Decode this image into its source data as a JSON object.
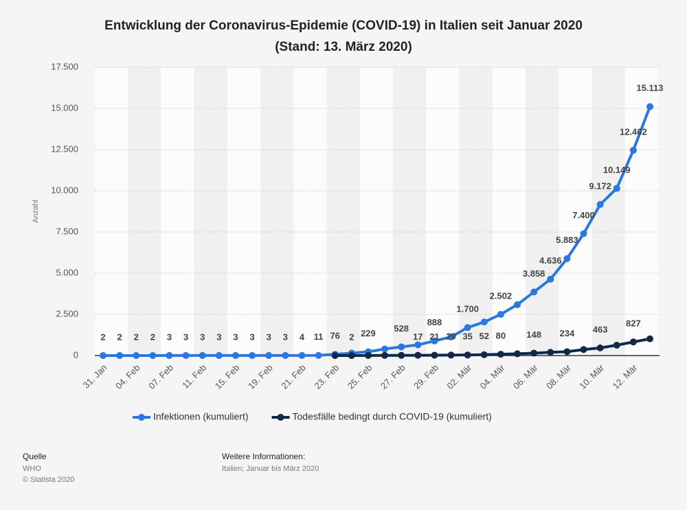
{
  "chart_data": {
    "type": "line",
    "title": "Entwicklung der Coronavirus-Epidemie (COVID-19) in Italien seit Januar 2020",
    "subtitle": "(Stand: 13. März 2020)",
    "y_label": "Anzahl",
    "categories": [
      "31. Jan",
      null,
      "04. Feb",
      null,
      "07. Feb",
      null,
      "11. Feb",
      null,
      "15. Feb",
      null,
      "19. Feb",
      null,
      "21. Feb",
      null,
      "23. Feb",
      null,
      "25. Feb",
      null,
      "27. Feb",
      null,
      "29. Feb",
      null,
      "02. Mär",
      null,
      "04. Mär",
      null,
      "06. Mär",
      null,
      "08. Mär",
      null,
      "10. Mär",
      null,
      "12. Mär",
      null
    ],
    "series": [
      {
        "name": "Infektionen (kumuliert)",
        "color": "#2a78de",
        "values": [
          2,
          2,
          2,
          2,
          3,
          3,
          3,
          3,
          3,
          3,
          3,
          3,
          4,
          11,
          76,
          150,
          229,
          400,
          528,
          650,
          888,
          1128,
          1700,
          2036,
          2502,
          3089,
          3858,
          4636,
          5883,
          7400,
          9172,
          10149,
          12462,
          15113
        ],
        "value_labels": [
          "2",
          "2",
          "2",
          "2",
          "3",
          "3",
          "3",
          "3",
          "3",
          "3",
          "3",
          "3",
          "4",
          "11",
          "76",
          null,
          "229",
          null,
          "528",
          null,
          "888",
          null,
          "1.700",
          null,
          "2.502",
          null,
          "3.858",
          "4.636",
          "5.883",
          "7.400",
          "9.172",
          "10.149",
          "12.462",
          "15.113"
        ]
      },
      {
        "name": "Todesfälle bedingt durch COVID-19 (kumuliert)",
        "color": "#0e2a47",
        "values": [
          null,
          null,
          null,
          null,
          null,
          null,
          null,
          null,
          null,
          null,
          null,
          null,
          null,
          null,
          1,
          2,
          7,
          10,
          12,
          17,
          21,
          29,
          35,
          52,
          80,
          107,
          148,
          197,
          234,
          366,
          463,
          631,
          827,
          1016
        ],
        "value_labels": [
          null,
          null,
          null,
          null,
          null,
          null,
          null,
          null,
          null,
          null,
          null,
          null,
          null,
          null,
          null,
          "2",
          null,
          null,
          null,
          "17",
          "21",
          "29",
          "35",
          "52",
          "80",
          null,
          "148",
          null,
          "234",
          null,
          "463",
          null,
          "827",
          null
        ]
      }
    ],
    "ylim": [
      0,
      17500
    ],
    "yticks": [
      0,
      {
        "value": 2500,
        "label": "2.500"
      },
      {
        "value": 5000,
        "label": "5.000"
      },
      {
        "value": 7500,
        "label": "7.500"
      },
      {
        "value": 10000,
        "label": "10.000"
      },
      {
        "value": 12500,
        "label": "12.500"
      },
      {
        "value": 15000,
        "label": "15.000"
      },
      {
        "value": 17500,
        "label": "17.500"
      }
    ],
    "grid": true,
    "legend": "bottom",
    "source_label": "Quelle",
    "source": "WHO",
    "copyright": "© Statista 2020",
    "info_label": "Weitere Informationen:",
    "info": "Italien; Januar bis März 2020"
  }
}
